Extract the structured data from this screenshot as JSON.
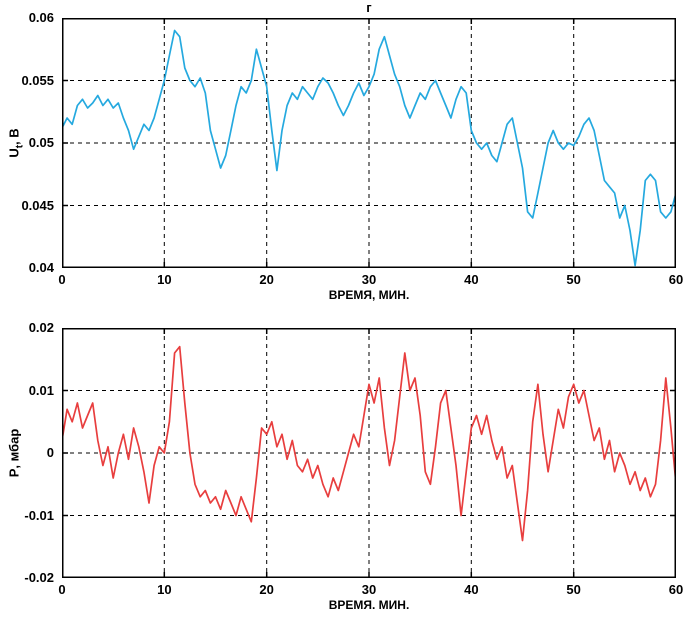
{
  "figure": {
    "background": "#ffffff",
    "grid_color": "#000000",
    "axis_color": "#000000"
  },
  "chart_data": [
    {
      "type": "line",
      "title": "г",
      "xlabel": "ВРЕМЯ, МИН.",
      "ylabel": "U_t, В",
      "ylabel_main": "U",
      "ylabel_sub": "t",
      "ylabel_rest": ", В",
      "line_color": "#25A9DF",
      "grid": true,
      "xlim": [
        0,
        60
      ],
      "ylim": [
        0.04,
        0.06
      ],
      "xticks": [
        0,
        10,
        20,
        30,
        40,
        50,
        60
      ],
      "yticks": [
        0.04,
        0.045,
        0.05,
        0.055,
        0.06
      ],
      "xtick_labels": [
        "0",
        "10",
        "20",
        "30",
        "40",
        "50",
        "60"
      ],
      "ytick_labels": [
        "0.04",
        "0.045",
        "0.05",
        "0.055",
        "0.06"
      ],
      "x_step": 0.5,
      "y": [
        0.0512,
        0.052,
        0.0515,
        0.053,
        0.0535,
        0.0528,
        0.0532,
        0.0538,
        0.053,
        0.0535,
        0.0528,
        0.0532,
        0.052,
        0.051,
        0.0495,
        0.0505,
        0.0515,
        0.051,
        0.052,
        0.0535,
        0.055,
        0.057,
        0.059,
        0.0585,
        0.056,
        0.055,
        0.0545,
        0.0552,
        0.054,
        0.051,
        0.0495,
        0.048,
        0.049,
        0.051,
        0.053,
        0.0545,
        0.054,
        0.055,
        0.0575,
        0.056,
        0.0545,
        0.051,
        0.0478,
        0.051,
        0.053,
        0.054,
        0.0535,
        0.0545,
        0.054,
        0.0535,
        0.0545,
        0.0552,
        0.0548,
        0.054,
        0.053,
        0.0522,
        0.053,
        0.054,
        0.0548,
        0.0538,
        0.0545,
        0.0555,
        0.0575,
        0.0585,
        0.057,
        0.0555,
        0.0545,
        0.053,
        0.052,
        0.053,
        0.054,
        0.0535,
        0.0545,
        0.055,
        0.054,
        0.053,
        0.052,
        0.0535,
        0.0545,
        0.054,
        0.051,
        0.05,
        0.0495,
        0.05,
        0.049,
        0.0485,
        0.05,
        0.0515,
        0.052,
        0.05,
        0.048,
        0.0445,
        0.044,
        0.046,
        0.048,
        0.05,
        0.051,
        0.05,
        0.0495,
        0.05,
        0.0498,
        0.0505,
        0.0515,
        0.052,
        0.051,
        0.049,
        0.047,
        0.0465,
        0.046,
        0.044,
        0.045,
        0.043,
        0.0402,
        0.043,
        0.047,
        0.0475,
        0.047,
        0.0445,
        0.044,
        0.0445,
        0.046
      ]
    },
    {
      "type": "line",
      "title": "",
      "xlabel": "ВРЕМЯ. МИН.",
      "ylabel": "P, мбар",
      "ylabel_main": "P",
      "ylabel_sub": "",
      "ylabel_rest": ", мбар",
      "line_color": "#E83E3E",
      "grid": true,
      "xlim": [
        0,
        60
      ],
      "ylim": [
        -0.02,
        0.02
      ],
      "xticks": [
        0,
        10,
        20,
        30,
        40,
        50,
        60
      ],
      "yticks": [
        -0.02,
        -0.01,
        0,
        0.01,
        0.02
      ],
      "xtick_labels": [
        "0",
        "10",
        "20",
        "30",
        "40",
        "50",
        "60"
      ],
      "ytick_labels": [
        "-0.02",
        "-0.01",
        "0",
        "0.01",
        "0.02"
      ],
      "x_step": 0.5,
      "y": [
        0.002,
        0.007,
        0.005,
        0.008,
        0.004,
        0.006,
        0.008,
        0.002,
        -0.002,
        0.001,
        -0.004,
        0.0,
        0.003,
        -0.001,
        0.004,
        0.001,
        -0.003,
        -0.008,
        -0.002,
        0.001,
        0.0,
        0.005,
        0.016,
        0.017,
        0.008,
        0.0,
        -0.005,
        -0.007,
        -0.006,
        -0.008,
        -0.007,
        -0.009,
        -0.006,
        -0.008,
        -0.01,
        -0.007,
        -0.009,
        -0.011,
        -0.004,
        0.004,
        0.003,
        0.005,
        0.001,
        0.003,
        -0.001,
        0.002,
        -0.002,
        -0.003,
        -0.001,
        -0.004,
        -0.002,
        -0.005,
        -0.007,
        -0.004,
        -0.006,
        -0.003,
        0.0,
        0.003,
        0.001,
        0.006,
        0.011,
        0.008,
        0.012,
        0.004,
        -0.002,
        0.002,
        0.009,
        0.016,
        0.01,
        0.012,
        0.006,
        -0.003,
        -0.005,
        0.001,
        0.008,
        0.01,
        0.004,
        -0.002,
        -0.01,
        -0.003,
        0.004,
        0.006,
        0.003,
        0.006,
        0.002,
        -0.001,
        0.001,
        -0.004,
        -0.002,
        -0.008,
        -0.014,
        -0.006,
        0.005,
        0.011,
        0.003,
        -0.003,
        0.002,
        0.007,
        0.004,
        0.009,
        0.011,
        0.008,
        0.01,
        0.006,
        0.002,
        0.004,
        -0.001,
        0.002,
        -0.003,
        0.0,
        -0.002,
        -0.005,
        -0.003,
        -0.006,
        -0.004,
        -0.007,
        -0.005,
        0.002,
        0.012,
        0.004,
        -0.005
      ]
    }
  ]
}
